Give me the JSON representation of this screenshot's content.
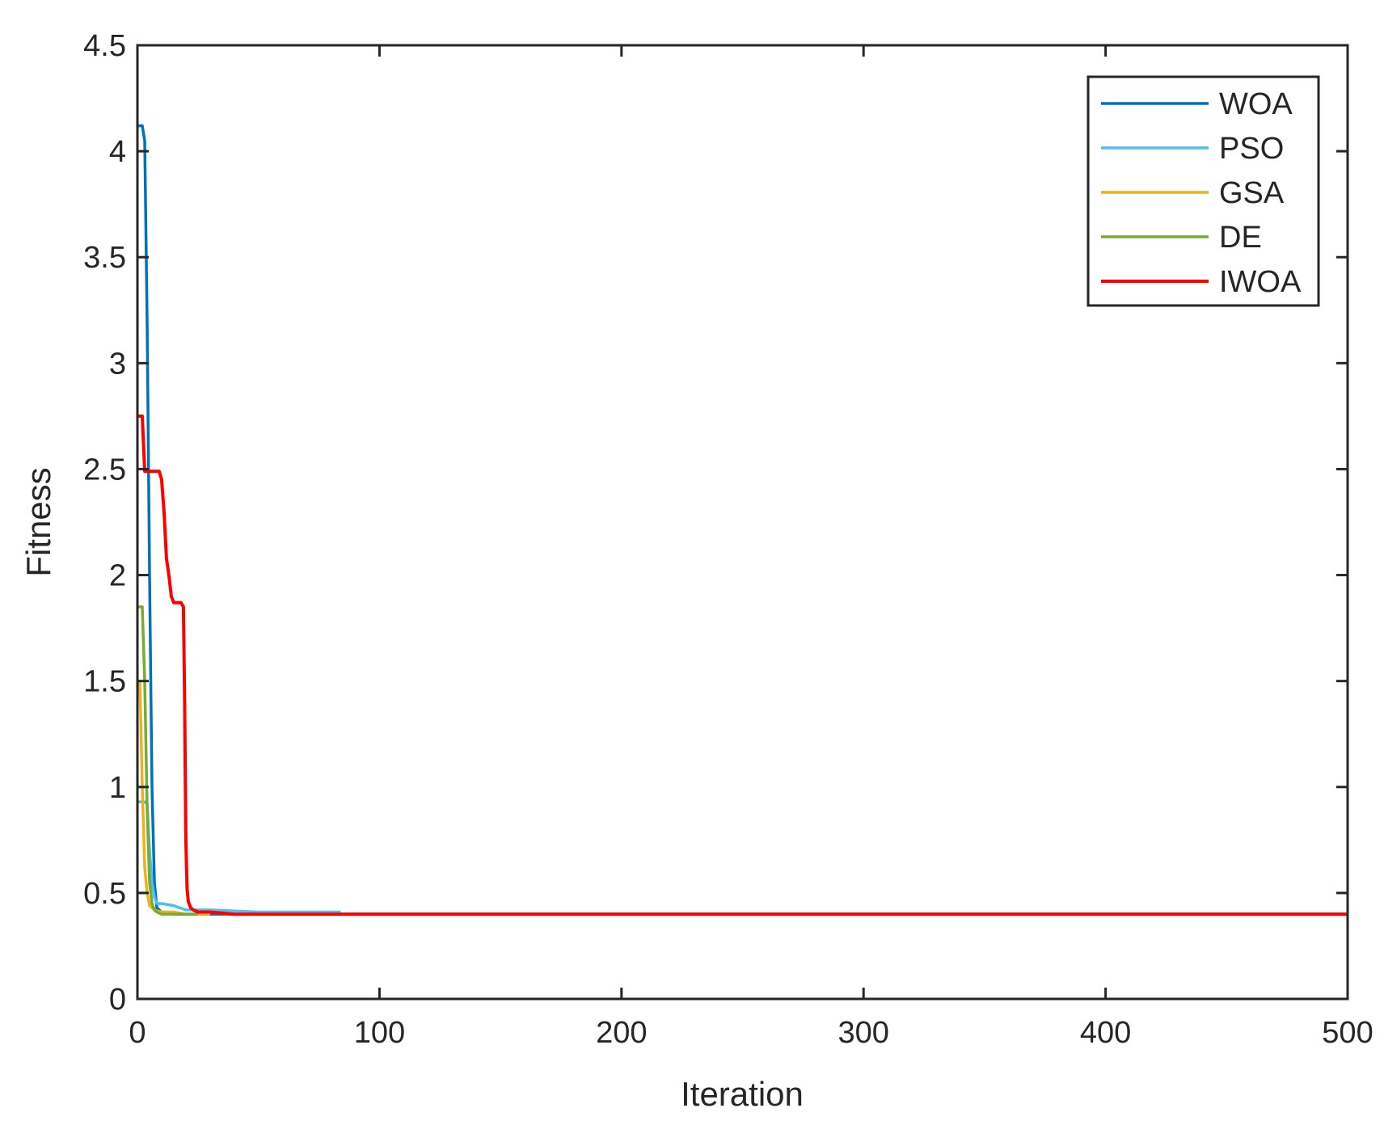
{
  "chart_data": {
    "type": "line",
    "title": "",
    "xlabel": "Iteration",
    "ylabel": "Fitness",
    "xlim": [
      0,
      500
    ],
    "ylim": [
      0,
      4.5
    ],
    "xticks": [
      0,
      100,
      200,
      300,
      400,
      500
    ],
    "xtick_labels": [
      "0",
      "100",
      "200",
      "300",
      "400",
      "500"
    ],
    "yticks": [
      0,
      0.5,
      1,
      1.5,
      2,
      2.5,
      3,
      3.5,
      4,
      4.5
    ],
    "ytick_labels": [
      "0",
      "0.5",
      "1",
      "1.5",
      "2",
      "2.5",
      "3",
      "3.5",
      "4",
      "4.5"
    ],
    "grid": false,
    "legend_position": "top-right",
    "series": [
      {
        "name": "WOA",
        "color": "#0072bd",
        "x": [
          0,
          2,
          3,
          4,
          5,
          6,
          7,
          8,
          10,
          15,
          25,
          40
        ],
        "y": [
          4.12,
          4.12,
          4.05,
          3.2,
          2.0,
          1.0,
          0.55,
          0.43,
          0.41,
          0.4,
          0.4,
          0.4
        ]
      },
      {
        "name": "PSO",
        "color": "#4dbeee",
        "x": [
          0,
          2,
          3,
          4,
          5,
          6,
          7,
          8,
          10,
          15,
          20,
          30,
          50,
          84
        ],
        "y": [
          0.93,
          0.93,
          0.93,
          0.92,
          0.7,
          0.55,
          0.48,
          0.45,
          0.45,
          0.44,
          0.42,
          0.42,
          0.41,
          0.41
        ]
      },
      {
        "name": "GSA",
        "color": "#edb120",
        "x": [
          0,
          1,
          2,
          3,
          4,
          5,
          7,
          10,
          15,
          20,
          30
        ],
        "y": [
          1.5,
          1.5,
          1.0,
          0.62,
          0.5,
          0.44,
          0.42,
          0.41,
          0.41,
          0.4,
          0.4
        ]
      },
      {
        "name": "DE",
        "color": "#77ac30",
        "x": [
          0,
          1,
          2,
          3,
          4,
          5,
          6,
          7,
          8,
          10,
          15,
          25
        ],
        "y": [
          1.85,
          1.85,
          1.85,
          1.5,
          0.9,
          0.55,
          0.45,
          0.42,
          0.41,
          0.4,
          0.4,
          0.4
        ]
      },
      {
        "name": "IWOA",
        "color": "#ff0000",
        "x": [
          0,
          2,
          3,
          5,
          9,
          10,
          11,
          12,
          13,
          14,
          15,
          18,
          19,
          19.5,
          20,
          20.5,
          21,
          22,
          23,
          25,
          30,
          40,
          60,
          100,
          200,
          300,
          400,
          500
        ],
        "y": [
          2.75,
          2.75,
          2.49,
          2.49,
          2.49,
          2.45,
          2.3,
          2.08,
          2.0,
          1.9,
          1.87,
          1.87,
          1.85,
          1.4,
          0.75,
          0.52,
          0.46,
          0.43,
          0.42,
          0.41,
          0.41,
          0.4,
          0.4,
          0.4,
          0.4,
          0.4,
          0.4,
          0.4
        ]
      }
    ]
  }
}
